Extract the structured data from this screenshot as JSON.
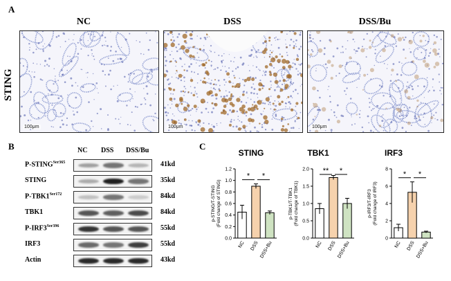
{
  "panel_a": {
    "letter": "A",
    "row_label": "STING",
    "columns": [
      {
        "title": "NC",
        "scale_bar": "100μm",
        "stain": "negative"
      },
      {
        "title": "DSS",
        "scale_bar": "100μm",
        "stain": "strong-brown"
      },
      {
        "title": "DSS/Bu",
        "scale_bar": "100μm",
        "stain": "weak-brown"
      }
    ],
    "colors": {
      "hematoxylin": "#9aa6d6",
      "dab": "#a0692a",
      "background": "#f5f5fb"
    }
  },
  "panel_b": {
    "letter": "B",
    "lanes": [
      "NC",
      "DSS",
      "DSS/Bu"
    ],
    "rows": [
      {
        "label": "P-STING",
        "sup": "Ser365",
        "kd": "41kd",
        "intensity": [
          0.35,
          0.55,
          0.25
        ]
      },
      {
        "label": "STING",
        "sup": "",
        "kd": "35kd",
        "intensity": [
          0.3,
          0.95,
          0.55
        ]
      },
      {
        "label": "P-TBK1",
        "sup": "Ser172",
        "kd": "84kd",
        "intensity": [
          0.2,
          0.55,
          0.15
        ]
      },
      {
        "label": "TBK1",
        "sup": "",
        "kd": "84kd",
        "intensity": [
          0.7,
          0.65,
          0.75
        ]
      },
      {
        "label": "P-IRF3",
        "sup": "Ser396",
        "kd": "55kd",
        "intensity": [
          0.85,
          0.7,
          0.7
        ]
      },
      {
        "label": "IRF3",
        "sup": "",
        "kd": "55kd",
        "intensity": [
          0.6,
          0.55,
          0.8
        ]
      },
      {
        "label": "Actin",
        "sup": "",
        "kd": "43kd",
        "intensity": [
          0.9,
          0.9,
          0.9
        ]
      }
    ]
  },
  "panel_c": {
    "letter": "C",
    "chart_data": [
      {
        "type": "bar",
        "title": "STING",
        "ylabel": "p-STING/T-STING\n(Fold change of STING)",
        "categories": [
          "NC",
          "DSS",
          "DSS+Bu"
        ],
        "values": [
          0.45,
          0.9,
          0.44
        ],
        "errors": [
          0.12,
          0.04,
          0.03
        ],
        "ylim": [
          0,
          1.2
        ],
        "yticks": [
          0.0,
          0.2,
          0.4,
          0.6,
          0.8,
          1.0,
          1.2
        ],
        "ytick_labels": [
          "0.0",
          "0.2",
          "0.4",
          "0.6",
          "0.8",
          "1.0",
          "1.2"
        ],
        "significance": [
          {
            "from": 0,
            "to": 1,
            "label": "*"
          },
          {
            "from": 1,
            "to": 2,
            "label": "*"
          }
        ]
      },
      {
        "type": "bar",
        "title": "TBK1",
        "ylabel": "p-TBK1/T-TBK1\n(Fold change of TBK1)",
        "categories": [
          "NC",
          "DSS",
          "DSS+Bu"
        ],
        "values": [
          0.85,
          1.75,
          1.0
        ],
        "errors": [
          0.15,
          0.06,
          0.15
        ],
        "ylim": [
          0,
          2.0
        ],
        "yticks": [
          0.0,
          0.5,
          1.0,
          1.5,
          2.0
        ],
        "ytick_labels": [
          "0.0",
          "0.5",
          "1.0",
          "1.5",
          "2.0"
        ],
        "significance": [
          {
            "from": 0,
            "to": 1,
            "label": "**"
          },
          {
            "from": 1,
            "to": 2,
            "label": "*"
          }
        ]
      },
      {
        "type": "bar",
        "title": "IRF3",
        "ylabel": "p-IRF3/T-IRF3\n(Fold change of IRF3)",
        "categories": [
          "NC",
          "DSS",
          "DSS+Bu"
        ],
        "values": [
          1.2,
          5.3,
          0.7
        ],
        "errors": [
          0.4,
          1.2,
          0.1
        ],
        "ylim": [
          0,
          8
        ],
        "yticks": [
          0,
          2,
          4,
          6,
          8
        ],
        "ytick_labels": [
          "0",
          "2",
          "4",
          "6",
          "8"
        ],
        "significance": [
          {
            "from": 0,
            "to": 1,
            "label": "*"
          },
          {
            "from": 1,
            "to": 2,
            "label": "*"
          }
        ]
      }
    ],
    "bar_colors": [
      "#ffffff",
      "#f6d2ad",
      "#cfe3c2"
    ]
  }
}
